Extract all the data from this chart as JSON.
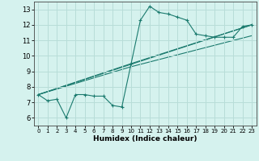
{
  "xlabel": "Humidex (Indice chaleur)",
  "background_color": "#d5f2ee",
  "grid_color": "#b8ddd8",
  "line_color": "#1a7a6e",
  "xlim": [
    -0.5,
    23.5
  ],
  "ylim": [
    5.5,
    13.5
  ],
  "xticks": [
    0,
    1,
    2,
    3,
    4,
    5,
    6,
    7,
    8,
    9,
    10,
    11,
    12,
    13,
    14,
    15,
    16,
    17,
    18,
    19,
    20,
    21,
    22,
    23
  ],
  "yticks": [
    6,
    7,
    8,
    9,
    10,
    11,
    12,
    13
  ],
  "main_series": {
    "x": [
      0,
      1,
      2,
      3,
      4,
      5,
      6,
      7,
      8,
      9,
      10,
      11,
      12,
      13,
      14,
      15,
      16,
      17,
      18,
      19,
      20,
      21,
      22,
      23
    ],
    "y": [
      7.5,
      7.1,
      7.2,
      6.0,
      7.5,
      7.5,
      7.4,
      7.4,
      6.8,
      6.7,
      9.5,
      12.3,
      13.2,
      12.8,
      12.7,
      12.5,
      12.3,
      11.4,
      11.3,
      11.2,
      11.2,
      11.2,
      11.9,
      12.0
    ]
  },
  "trend_lines": [
    {
      "x": [
        0,
        23
      ],
      "y": [
        7.5,
        12.0
      ]
    },
    {
      "x": [
        0,
        10,
        23
      ],
      "y": [
        7.5,
        9.5,
        12.0
      ]
    },
    {
      "x": [
        0,
        10,
        23
      ],
      "y": [
        7.5,
        9.3,
        11.3
      ]
    }
  ]
}
